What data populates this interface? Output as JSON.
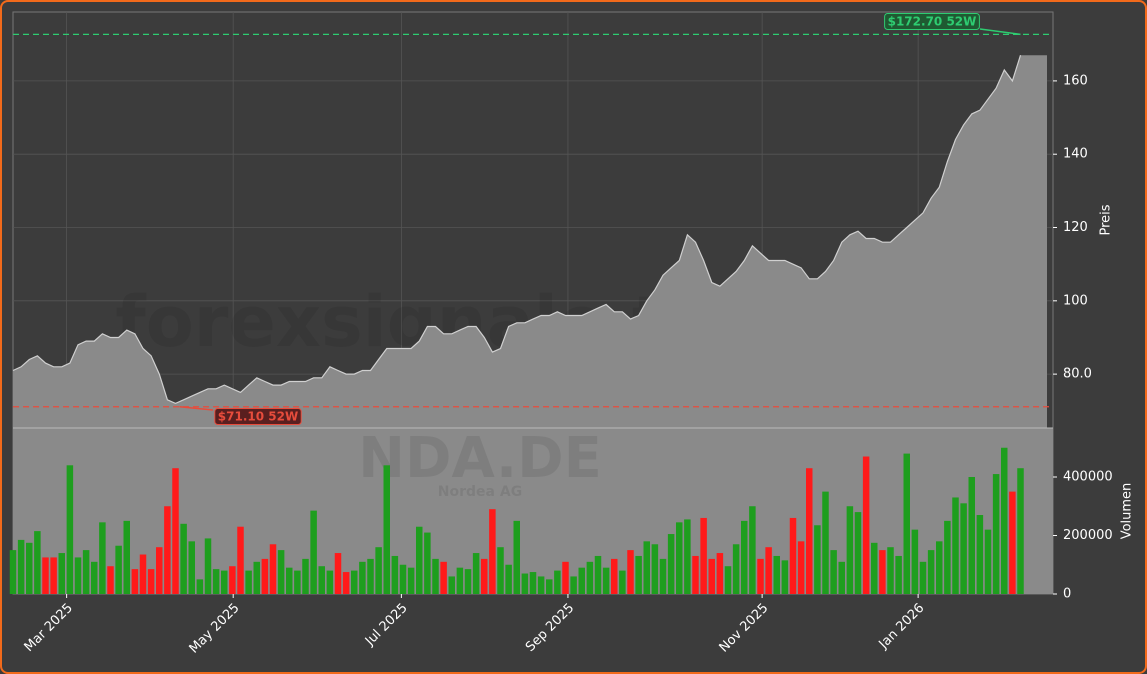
{
  "chart_data": {
    "type": "area",
    "ticker": "NDA.DE",
    "company": "Nordea AG",
    "watermark": "forexsignale.trade",
    "x": [
      0,
      1,
      2,
      3,
      4,
      5,
      6,
      7,
      8,
      9,
      10,
      11,
      12,
      13,
      14,
      15,
      16,
      17,
      18,
      19,
      20,
      21,
      22,
      23,
      24,
      25,
      26,
      27,
      28,
      29,
      30,
      31,
      32,
      33,
      34,
      35,
      36,
      37,
      38,
      39,
      40,
      41,
      42,
      43,
      44,
      45,
      46,
      47,
      48,
      49,
      50,
      51,
      52,
      53,
      54,
      55,
      56,
      57,
      58,
      59,
      60,
      61,
      62,
      63,
      64,
      65,
      66,
      67,
      68,
      69,
      70,
      71,
      72,
      73,
      74,
      75,
      76,
      77,
      78,
      79,
      80,
      81,
      82,
      83,
      84,
      85,
      86,
      87,
      88,
      89,
      90,
      91,
      92,
      93,
      94,
      95,
      96,
      97,
      98,
      99,
      100,
      101,
      102,
      103,
      104,
      105,
      106,
      107,
      108,
      109,
      110,
      111,
      112,
      113,
      114,
      115,
      116,
      117,
      118,
      119,
      120,
      121,
      122,
      123,
      124
    ],
    "xlim": [
      0,
      128
    ],
    "xticks": [
      {
        "value": 6.6,
        "label": "Mar 2025"
      },
      {
        "value": 27.1,
        "label": "May 2025"
      },
      {
        "value": 47.8,
        "label": "Jul 2025"
      },
      {
        "value": 68.3,
        "label": "Sep 2025"
      },
      {
        "value": 92.2,
        "label": "Nov 2025"
      },
      {
        "value": 111.4,
        "label": "Jan 2026"
      }
    ],
    "series": [
      {
        "name": "Preis",
        "color": "#8a8a8a",
        "line_color": "#d0d0d0",
        "values": [
          81,
          82,
          84,
          85,
          83,
          82,
          82,
          83,
          88,
          89,
          89,
          91,
          90,
          90,
          92,
          91,
          87,
          85,
          80,
          73,
          72,
          73,
          74,
          75,
          76,
          76,
          77,
          76,
          75,
          77,
          79,
          78,
          77,
          77,
          78,
          78,
          78,
          79,
          79,
          82,
          81,
          80,
          80,
          81,
          81,
          84,
          87,
          87,
          87,
          87,
          89,
          93,
          93,
          91,
          91,
          92,
          93,
          93,
          90,
          86,
          87,
          93,
          94,
          94,
          95,
          96,
          96,
          97,
          96,
          96,
          96,
          97,
          98,
          99,
          97,
          97,
          95,
          96,
          100,
          103,
          107,
          109,
          111,
          118,
          116,
          111,
          105,
          104,
          106,
          108,
          111,
          115,
          113,
          111,
          111,
          111,
          110,
          109,
          106,
          106,
          108,
          111,
          116,
          118,
          119,
          117,
          117,
          116,
          116,
          118,
          120,
          122,
          124,
          128,
          131,
          138,
          144,
          148,
          151,
          152,
          155,
          158,
          163,
          160,
          167
        ]
      }
    ],
    "ylabel": "Preis",
    "ylim": [
      65.3,
      178.8
    ],
    "yticks": [
      {
        "value": 80,
        "label": "80.0"
      },
      100,
      120,
      140,
      160
    ],
    "annotations": [
      {
        "value": 172.7,
        "label": "$172.70 52W",
        "color": "#2ecc71"
      },
      {
        "value": 71.1,
        "label": "$71.10 52W",
        "color": "#e74c3c"
      }
    ],
    "volume": {
      "ylabel": "Volumen",
      "ylim": [
        0,
        567500
      ],
      "yticks": [
        0,
        200000,
        400000
      ],
      "up_color": "#1e9e1e",
      "down_color": "#ff1a1a",
      "panel_color": "#8a8a8a",
      "values": [
        150000,
        185000,
        175000,
        215000,
        125000,
        125000,
        140000,
        440000,
        125000,
        150000,
        110000,
        245000,
        95000,
        165000,
        250000,
        85000,
        135000,
        85000,
        160000,
        300000,
        430000,
        240000,
        180000,
        50000,
        190000,
        85000,
        80000,
        95000,
        230000,
        80000,
        110000,
        120000,
        170000,
        150000,
        90000,
        80000,
        120000,
        285000,
        95000,
        80000,
        140000,
        75000,
        80000,
        110000,
        120000,
        160000,
        440000,
        130000,
        100000,
        90000,
        230000,
        210000,
        120000,
        110000,
        60000,
        90000,
        85000,
        140000,
        120000,
        290000,
        160000,
        100000,
        250000,
        70000,
        75000,
        60000,
        50000,
        80000,
        110000,
        60000,
        90000,
        110000,
        130000,
        90000,
        120000,
        80000,
        150000,
        130000,
        180000,
        170000,
        120000,
        205000,
        245000,
        255000,
        130000,
        260000,
        120000,
        140000,
        95000,
        170000,
        250000,
        300000,
        120000,
        160000,
        130000,
        115000,
        260000,
        180000,
        430000,
        235000,
        350000,
        150000,
        110000,
        300000,
        280000,
        470000,
        175000,
        150000,
        160000,
        130000,
        480000,
        220000,
        110000,
        150000,
        180000,
        250000,
        330000,
        310000,
        400000,
        270000,
        220000,
        410000,
        500000,
        350000,
        430000
      ]
    },
    "grid": true
  }
}
